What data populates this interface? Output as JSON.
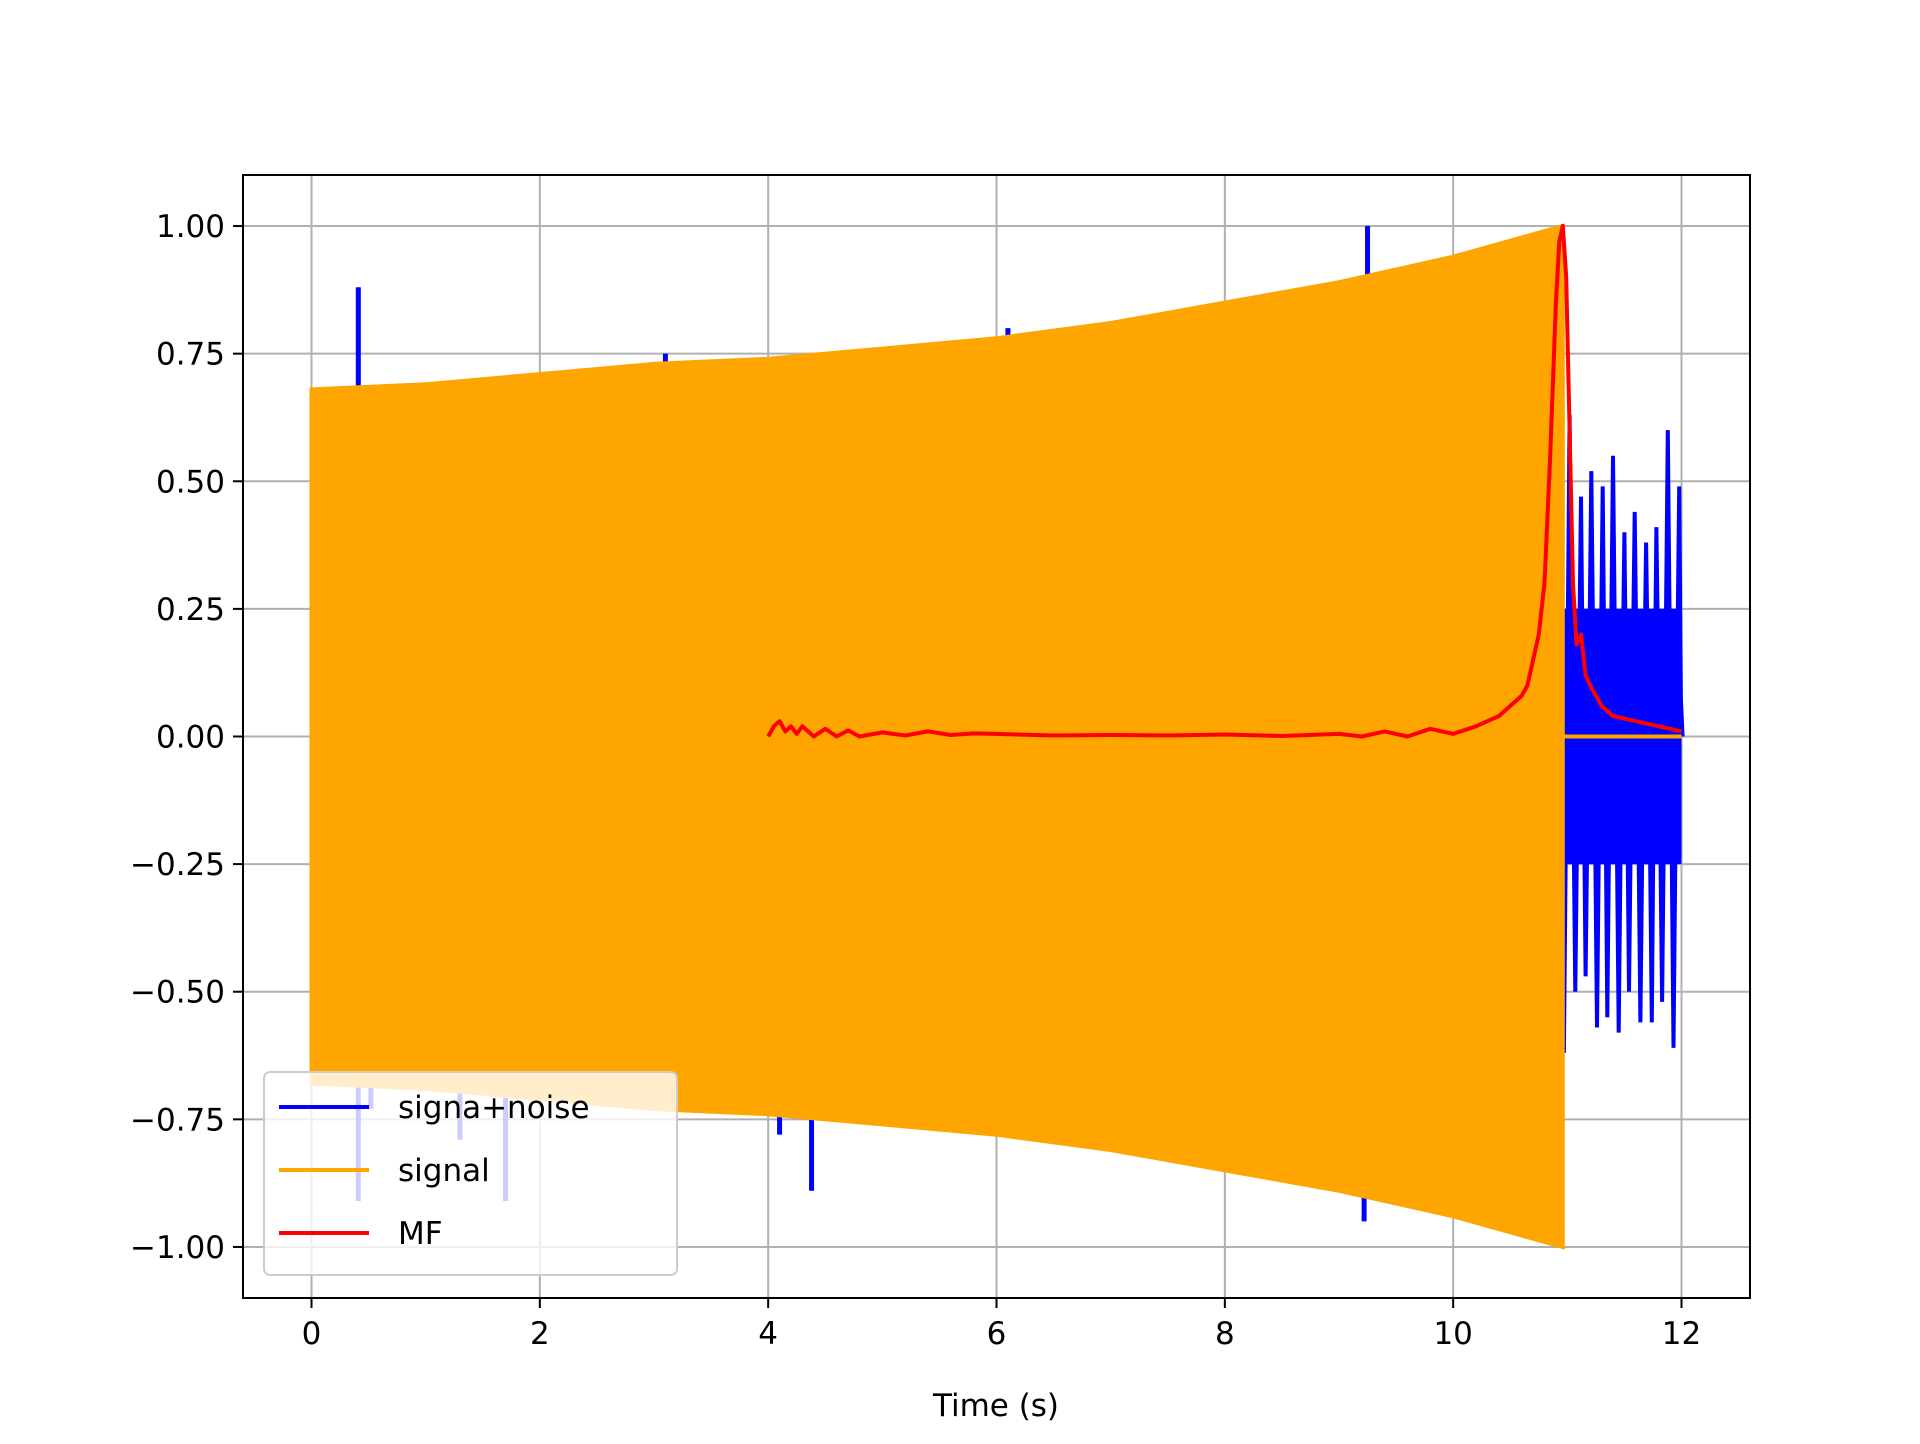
{
  "chart_data": {
    "type": "line",
    "title": "",
    "xlabel": "Time (s)",
    "ylabel": "",
    "xlim": [
      -0.6,
      12.6
    ],
    "ylim": [
      -1.1,
      1.1
    ],
    "grid": true,
    "legend_position": "lower left",
    "xticks": [
      0,
      2,
      4,
      6,
      8,
      10,
      12
    ],
    "xtick_labels": [
      "0",
      "2",
      "4",
      "6",
      "8",
      "10",
      "12"
    ],
    "yticks": [
      1.0,
      0.75,
      0.5,
      0.25,
      0.0,
      -0.25,
      -0.5,
      -0.75,
      -1.0
    ],
    "ytick_labels": [
      "1.00",
      "0.75",
      "0.50",
      "0.25",
      "0.00",
      "−0.25",
      "−0.50",
      "−0.75",
      "−1.00"
    ],
    "series": [
      {
        "name": "signa+noise",
        "color": "#0000ff",
        "envelope": {
          "x": [
            0.0,
            1,
            2,
            3,
            4,
            5,
            6,
            7,
            8,
            9,
            10,
            10.96
          ],
          "upper": [
            0.68,
            0.69,
            0.71,
            0.73,
            0.74,
            0.76,
            0.78,
            0.81,
            0.85,
            0.89,
            0.94,
            1.0
          ],
          "lower": [
            -0.68,
            -0.69,
            -0.71,
            -0.73,
            -0.74,
            -0.76,
            -0.78,
            -0.81,
            -0.85,
            -0.89,
            -0.94,
            -1.0
          ]
        },
        "spikes": [
          {
            "x": 0.41,
            "y0": 0.3,
            "y1": 0.88
          },
          {
            "x": 0.41,
            "y0": -0.3,
            "y1": -0.91
          },
          {
            "x": 0.52,
            "y0": -0.3,
            "y1": -0.73
          },
          {
            "x": 1.3,
            "y0": -0.3,
            "y1": -0.79
          },
          {
            "x": 1.7,
            "y0": -0.3,
            "y1": -0.91
          },
          {
            "x": 3.1,
            "y0": 0.3,
            "y1": 0.75
          },
          {
            "x": 4.1,
            "y0": -0.3,
            "y1": -0.78
          },
          {
            "x": 4.38,
            "y0": -0.3,
            "y1": -0.89
          },
          {
            "x": 6.1,
            "y0": 0.3,
            "y1": 0.8
          },
          {
            "x": 9.25,
            "y0": 0.3,
            "y1": 1.0
          },
          {
            "x": 9.22,
            "y0": -0.3,
            "y1": -0.95
          }
        ],
        "noise_tail": {
          "x": [
            10.97,
            11.02,
            11.07,
            11.12,
            11.16,
            11.21,
            11.26,
            11.31,
            11.35,
            11.4,
            11.45,
            11.5,
            11.54,
            11.59,
            11.64,
            11.69,
            11.74,
            11.78,
            11.83,
            11.88,
            11.93,
            11.98,
            12.01
          ],
          "y": [
            -0.62,
            0.63,
            -0.5,
            0.47,
            -0.47,
            0.52,
            -0.57,
            0.49,
            -0.55,
            0.55,
            -0.58,
            0.4,
            -0.5,
            0.44,
            -0.56,
            0.38,
            -0.56,
            0.41,
            -0.52,
            0.6,
            -0.61,
            0.49,
            0.0
          ]
        }
      },
      {
        "name": "signal",
        "color": "#ffa500",
        "envelope": {
          "x": [
            0.0,
            1,
            2,
            3,
            4,
            5,
            6,
            7,
            8,
            9,
            10,
            10.96
          ],
          "upper": [
            0.68,
            0.69,
            0.71,
            0.73,
            0.74,
            0.76,
            0.78,
            0.81,
            0.85,
            0.89,
            0.94,
            1.0
          ],
          "lower": [
            -0.68,
            -0.69,
            -0.71,
            -0.73,
            -0.74,
            -0.76,
            -0.78,
            -0.81,
            -0.85,
            -0.89,
            -0.94,
            -1.0
          ]
        },
        "tail": {
          "x": [
            10.96,
            12.0
          ],
          "y": [
            0.0,
            0.0
          ]
        }
      },
      {
        "name": "MF",
        "color": "#ff0000",
        "x": [
          4.0,
          4.05,
          4.1,
          4.15,
          4.2,
          4.25,
          4.3,
          4.4,
          4.5,
          4.6,
          4.7,
          4.8,
          5.0,
          5.2,
          5.4,
          5.6,
          5.8,
          6.0,
          6.5,
          7.0,
          7.5,
          8.0,
          8.5,
          9.0,
          9.2,
          9.4,
          9.6,
          9.8,
          10.0,
          10.2,
          10.4,
          10.5,
          10.6,
          10.65,
          10.7,
          10.75,
          10.8,
          10.85,
          10.9,
          10.93,
          10.96,
          10.99,
          11.02,
          11.05,
          11.08,
          11.12,
          11.16,
          11.2,
          11.25,
          11.3,
          11.35,
          11.4,
          11.5,
          11.6,
          11.7,
          11.8,
          11.9,
          12.0
        ],
        "y": [
          0.0,
          0.02,
          0.03,
          0.01,
          0.02,
          0.005,
          0.02,
          0.0,
          0.015,
          0.0,
          0.012,
          0.0,
          0.008,
          0.002,
          0.01,
          0.003,
          0.006,
          0.005,
          0.002,
          0.003,
          0.002,
          0.004,
          0.001,
          0.005,
          0.0,
          0.01,
          0.0,
          0.015,
          0.005,
          0.02,
          0.04,
          0.06,
          0.08,
          0.1,
          0.15,
          0.2,
          0.3,
          0.55,
          0.85,
          0.97,
          1.0,
          0.9,
          0.6,
          0.3,
          0.18,
          0.2,
          0.12,
          0.1,
          0.08,
          0.06,
          0.05,
          0.04,
          0.035,
          0.03,
          0.025,
          0.02,
          0.015,
          0.01
        ]
      }
    ]
  }
}
